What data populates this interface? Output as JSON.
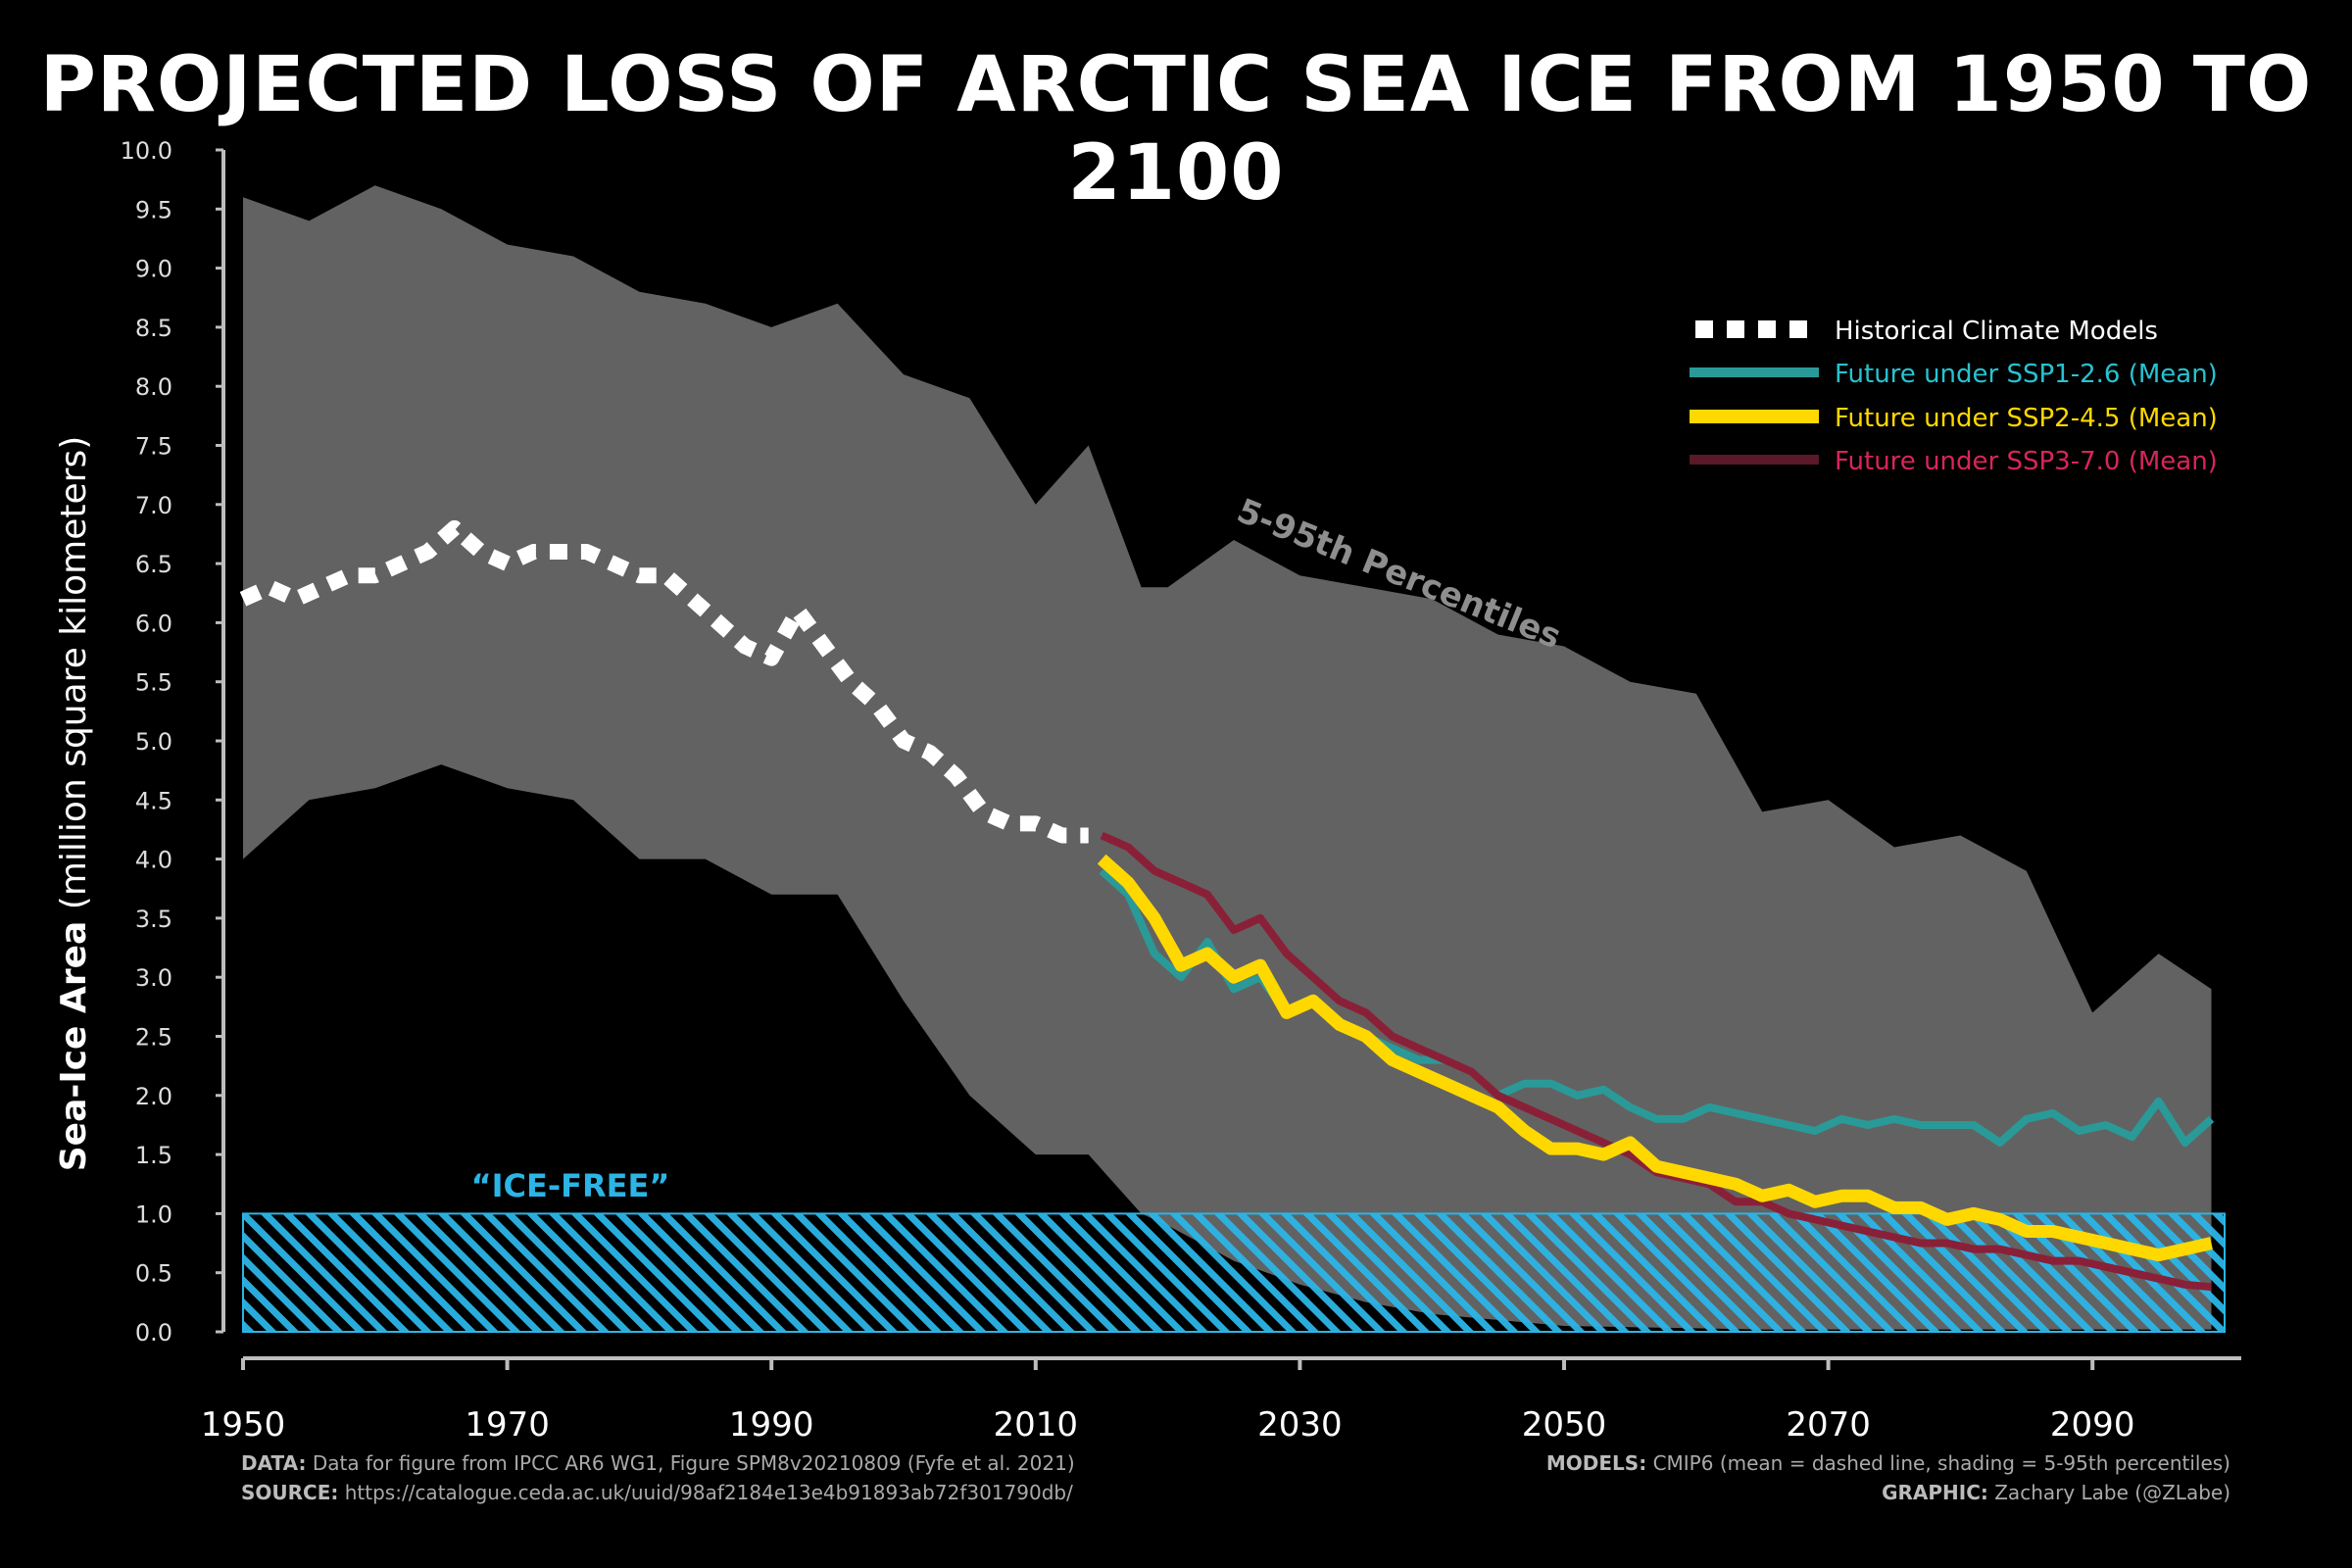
{
  "title": "PROJECTED LOSS OF ARCTIC SEA ICE FROM 1950 TO 2100",
  "colors": {
    "background": "#000000",
    "shading": "#6a6a6a",
    "historical": "#ffffff",
    "ssp126": "#2a9a98",
    "ssp245": "#ffd800",
    "ssp370": "#8a2038",
    "ssp126_text": "#27c3d1",
    "ssp370_text": "#d6265a",
    "icefree": "#2bb5e6"
  },
  "footer": {
    "data_label": "DATA:",
    "data_text": "Data for figure from IPCC AR6 WG1, Figure SPM8v20210809 (Fyfe et al. 2021)",
    "source_label": "SOURCE:",
    "source_text": "https://catalogue.ceda.ac.uk/uuid/98af2184e13e4b91893ab72f301790db/",
    "models_label": "MODELS:",
    "models_text": "CMIP6 (mean = dashed line, shading = 5-95th percentiles)",
    "graphic_label": "GRAPHIC:",
    "graphic_text": "Zachary Labe (@ZLabe)"
  },
  "chart_data": {
    "type": "line",
    "title": "PROJECTED LOSS OF ARCTIC SEA ICE FROM 1950 TO 2100",
    "ylabel_bold": "Sea-Ice Area",
    "ylabel_rest": "(million square kilometers)",
    "xlim": [
      1950,
      2100
    ],
    "ylim": [
      0,
      10
    ],
    "xticks": [
      1950,
      1970,
      1990,
      2010,
      2030,
      2050,
      2070,
      2090
    ],
    "xtick_labels": [
      "1950",
      "1970",
      "1990",
      "2010",
      "2030",
      "2050",
      "2070",
      "2090"
    ],
    "yticks": [
      0,
      0.5,
      1,
      1.5,
      2,
      2.5,
      3,
      3.5,
      4,
      4.5,
      5,
      5.5,
      6,
      6.5,
      7,
      7.5,
      8,
      8.5,
      9,
      9.5,
      10
    ],
    "ytick_labels": [
      "0.0",
      "0.5",
      "1.0",
      "1.5",
      "2.0",
      "2.5",
      "3.0",
      "3.5",
      "4.0",
      "4.5",
      "5.0",
      "5.5",
      "6.0",
      "6.5",
      "7.0",
      "7.5",
      "8.0",
      "8.5",
      "9.0",
      "9.5",
      "10.0"
    ],
    "band_label": "5-95th Percentiles",
    "band": {
      "x": [
        1950,
        1955,
        1960,
        1965,
        1970,
        1975,
        1980,
        1985,
        1990,
        1995,
        2000,
        2005,
        2010,
        2014,
        2018,
        2020,
        2025,
        2030,
        2035,
        2040,
        2045,
        2050,
        2055,
        2060,
        2065,
        2070,
        2075,
        2080,
        2085,
        2090,
        2095,
        2099
      ],
      "upper": [
        9.6,
        9.4,
        9.7,
        9.5,
        9.2,
        9.1,
        8.8,
        8.7,
        8.5,
        8.7,
        8.1,
        7.9,
        7.0,
        7.5,
        6.3,
        6.3,
        6.7,
        6.4,
        6.3,
        6.2,
        5.9,
        5.8,
        5.5,
        5.4,
        4.4,
        4.5,
        4.1,
        4.2,
        3.9,
        2.7,
        3.2,
        2.9
      ],
      "lower": [
        4.0,
        4.5,
        4.6,
        4.8,
        4.6,
        4.5,
        4.0,
        4.0,
        3.7,
        3.7,
        2.8,
        2.0,
        1.5,
        1.5,
        1.0,
        0.9,
        0.6,
        0.4,
        0.25,
        0.15,
        0.1,
        0.05,
        0.04,
        0.03,
        0.02,
        0.02,
        0.02,
        0.02,
        0.02,
        0.02,
        0.02,
        0.02
      ]
    },
    "icefree_label": "“ICE-FREE”",
    "icefree_threshold": 1.0,
    "series": [
      {
        "name": "Historical Climate Models",
        "x": [
          1950,
          1952,
          1954,
          1956,
          1958,
          1960,
          1962,
          1964,
          1966,
          1968,
          1970,
          1972,
          1974,
          1976,
          1978,
          1980,
          1982,
          1984,
          1986,
          1988,
          1990,
          1992,
          1994,
          1996,
          1998,
          2000,
          2002,
          2004,
          2006,
          2008,
          2010,
          2012,
          2014
        ],
        "values": [
          6.2,
          6.3,
          6.2,
          6.3,
          6.4,
          6.4,
          6.5,
          6.6,
          6.8,
          6.6,
          6.5,
          6.6,
          6.6,
          6.6,
          6.5,
          6.4,
          6.4,
          6.2,
          6.0,
          5.8,
          5.7,
          6.1,
          5.8,
          5.5,
          5.3,
          5.0,
          4.9,
          4.7,
          4.4,
          4.3,
          4.3,
          4.2,
          4.2
        ]
      },
      {
        "name": "Future under SSP1-2.6 (Mean)",
        "x": [
          2015,
          2017,
          2019,
          2021,
          2023,
          2025,
          2027,
          2029,
          2031,
          2033,
          2035,
          2037,
          2039,
          2041,
          2043,
          2045,
          2047,
          2049,
          2051,
          2053,
          2055,
          2057,
          2059,
          2061,
          2063,
          2065,
          2067,
          2069,
          2071,
          2073,
          2075,
          2077,
          2079,
          2081,
          2083,
          2085,
          2087,
          2089,
          2091,
          2093,
          2095,
          2097,
          2099
        ],
        "values": [
          3.9,
          3.7,
          3.2,
          3.0,
          3.3,
          2.9,
          3.0,
          2.7,
          2.8,
          2.6,
          2.5,
          2.4,
          2.3,
          2.3,
          2.2,
          2.0,
          2.1,
          2.1,
          2.0,
          2.05,
          1.9,
          1.8,
          1.8,
          1.9,
          1.85,
          1.8,
          1.75,
          1.7,
          1.8,
          1.75,
          1.8,
          1.75,
          1.75,
          1.75,
          1.6,
          1.8,
          1.85,
          1.7,
          1.75,
          1.65,
          1.95,
          1.6,
          1.8
        ]
      },
      {
        "name": "Future under SSP2-4.5 (Mean)",
        "x": [
          2015,
          2017,
          2019,
          2021,
          2023,
          2025,
          2027,
          2029,
          2031,
          2033,
          2035,
          2037,
          2039,
          2041,
          2043,
          2045,
          2047,
          2049,
          2051,
          2053,
          2055,
          2057,
          2059,
          2061,
          2063,
          2065,
          2067,
          2069,
          2071,
          2073,
          2075,
          2077,
          2079,
          2081,
          2083,
          2085,
          2087,
          2089,
          2091,
          2093,
          2095,
          2097,
          2099
        ],
        "values": [
          4.0,
          3.8,
          3.5,
          3.1,
          3.2,
          3.0,
          3.1,
          2.7,
          2.8,
          2.6,
          2.5,
          2.3,
          2.2,
          2.1,
          2.0,
          1.9,
          1.7,
          1.55,
          1.55,
          1.5,
          1.6,
          1.4,
          1.35,
          1.3,
          1.25,
          1.15,
          1.2,
          1.1,
          1.15,
          1.15,
          1.05,
          1.05,
          0.95,
          1.0,
          0.95,
          0.85,
          0.85,
          0.8,
          0.75,
          0.7,
          0.65,
          0.7,
          0.75
        ]
      },
      {
        "name": "Future under SSP3-7.0 (Mean)",
        "x": [
          2015,
          2017,
          2019,
          2021,
          2023,
          2025,
          2027,
          2029,
          2031,
          2033,
          2035,
          2037,
          2039,
          2041,
          2043,
          2045,
          2047,
          2049,
          2051,
          2053,
          2055,
          2057,
          2059,
          2061,
          2063,
          2065,
          2067,
          2069,
          2071,
          2073,
          2075,
          2077,
          2079,
          2081,
          2083,
          2085,
          2087,
          2089,
          2091,
          2093,
          2095,
          2097,
          2099
        ],
        "values": [
          4.2,
          4.1,
          3.9,
          3.8,
          3.7,
          3.4,
          3.5,
          3.2,
          3.0,
          2.8,
          2.7,
          2.5,
          2.4,
          2.3,
          2.2,
          2.0,
          1.9,
          1.8,
          1.7,
          1.6,
          1.5,
          1.35,
          1.3,
          1.25,
          1.1,
          1.1,
          1.0,
          0.95,
          0.9,
          0.85,
          0.8,
          0.75,
          0.75,
          0.7,
          0.7,
          0.65,
          0.6,
          0.6,
          0.55,
          0.5,
          0.45,
          0.4,
          0.38
        ]
      }
    ]
  }
}
